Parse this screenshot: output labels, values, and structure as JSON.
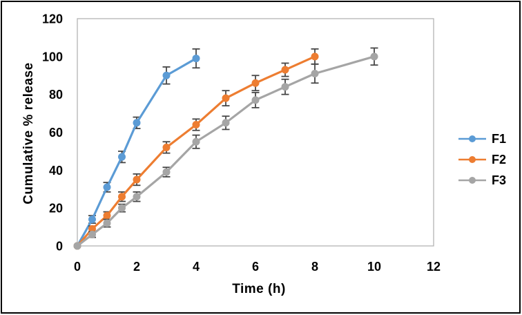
{
  "figure": {
    "background_color": "#ffffff",
    "frame_color": "#000000"
  },
  "chart_data": {
    "type": "line",
    "title": "",
    "xlabel": "Time (h)",
    "ylabel": "Cumulative % release",
    "xlim": [
      0,
      12
    ],
    "ylim": [
      0,
      120
    ],
    "x_ticks": [
      0,
      2,
      4,
      6,
      8,
      10,
      12
    ],
    "y_ticks": [
      0,
      20,
      40,
      60,
      80,
      100,
      120
    ],
    "grid": false,
    "legend_position": "right-outside",
    "axis_line_color": "#b3b3b3",
    "error_bar_color": "#474747",
    "tick_label_color": "#000000",
    "series": [
      {
        "name": "F1",
        "color": "#5B9BD5",
        "x": [
          0,
          0.5,
          1,
          1.5,
          2,
          3,
          4
        ],
        "y": [
          0,
          14,
          31,
          47,
          65,
          90,
          99
        ],
        "err": [
          0,
          2,
          2.5,
          3,
          3,
          4.5,
          5
        ]
      },
      {
        "name": "F2",
        "color": "#ED7D31",
        "x": [
          0,
          0.5,
          1,
          1.5,
          2,
          3,
          4,
          5,
          6,
          7,
          8
        ],
        "y": [
          0,
          9,
          16,
          26,
          35,
          52,
          64,
          78,
          86,
          93,
          100
        ],
        "err": [
          0,
          1.5,
          2,
          2.5,
          3,
          3,
          3,
          4,
          4,
          3.5,
          4
        ]
      },
      {
        "name": "F3",
        "color": "#A5A5A5",
        "x": [
          0,
          0.5,
          1,
          1.5,
          2,
          3,
          4,
          5,
          6,
          7,
          8,
          10
        ],
        "y": [
          0,
          6,
          12,
          20,
          26,
          39,
          55,
          65,
          77,
          84,
          91,
          100
        ],
        "err": [
          0,
          1.5,
          2,
          2,
          2.5,
          2.5,
          3.5,
          3.5,
          4,
          4,
          5,
          4.5
        ]
      }
    ]
  }
}
